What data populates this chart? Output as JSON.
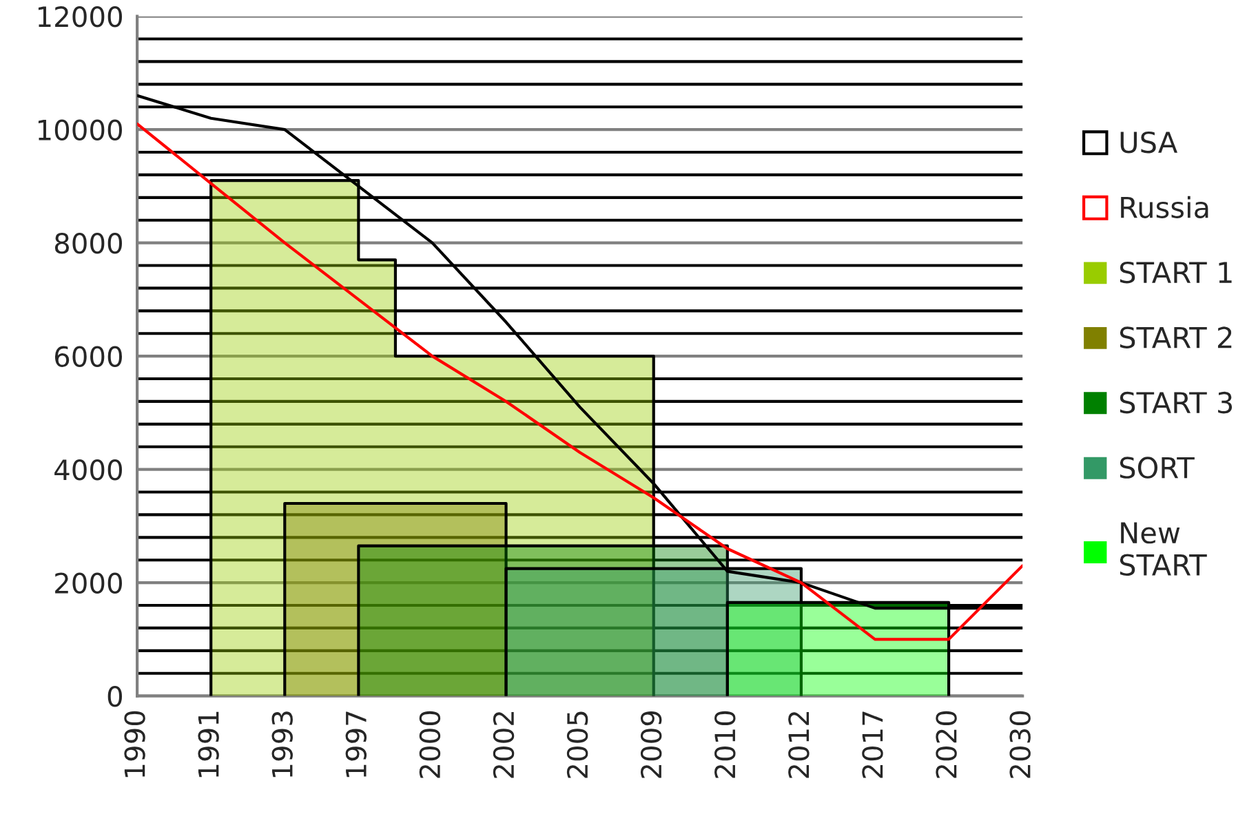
{
  "chart_data": {
    "type": "area",
    "categories": [
      "1990",
      null,
      "1991",
      null,
      "1993",
      null,
      "1997",
      null,
      "2000",
      null,
      "2002",
      null,
      "2005",
      null,
      "2009",
      null,
      "2010",
      null,
      "2012",
      null,
      "2017",
      null,
      "2020",
      null,
      "2030"
    ],
    "ylim": [
      0,
      12000
    ],
    "yticks": [
      0,
      {
        "value": 400,
        "label": null
      },
      {
        "value": 800,
        "label": null
      },
      {
        "value": 1200,
        "label": null
      },
      {
        "value": 1600,
        "label": null
      },
      2000,
      {
        "value": 2400,
        "label": null
      },
      {
        "value": 2800,
        "label": null
      },
      {
        "value": 3200,
        "label": null
      },
      {
        "value": 3600,
        "label": null
      },
      4000,
      {
        "value": 4400,
        "label": null
      },
      {
        "value": 4800,
        "label": null
      },
      {
        "value": 5200,
        "label": null
      },
      {
        "value": 5600,
        "label": null
      },
      6000,
      {
        "value": 6400,
        "label": null
      },
      {
        "value": 6800,
        "label": null
      },
      {
        "value": 7200,
        "label": null
      },
      {
        "value": 7600,
        "label": null
      },
      8000,
      {
        "value": 8400,
        "label": null
      },
      {
        "value": 8800,
        "label": null
      },
      {
        "value": 9200,
        "label": null
      },
      {
        "value": 9600,
        "label": null
      },
      10000,
      {
        "value": 10400,
        "label": null
      },
      {
        "value": 10800,
        "label": null
      },
      {
        "value": 11200,
        "label": null
      },
      {
        "value": 11600,
        "label": null
      },
      12000
    ],
    "grid": "y",
    "legend": "right",
    "series": [
      {
        "name": "USA",
        "type": "line",
        "color": "#000000",
        "values": [
          10600,
          null,
          10200,
          null,
          10000,
          null,
          9000,
          null,
          8000,
          null,
          6600,
          null,
          5100,
          null,
          3750,
          null,
          2200,
          null,
          2000,
          null,
          1550,
          null,
          1550,
          null,
          1550
        ]
      },
      {
        "name": "Russia",
        "type": "line",
        "color": "#ff0000",
        "values": [
          10100,
          null,
          9050,
          null,
          8000,
          null,
          7000,
          null,
          6000,
          null,
          5200,
          null,
          4300,
          null,
          3500,
          null,
          2600,
          null,
          2000,
          null,
          1000,
          null,
          1000,
          null,
          2300
        ]
      },
      {
        "name": "START 1",
        "color": "#99cc00",
        "values": [
          null,
          null,
          9100,
          9100,
          9100,
          9100,
          7700,
          6000,
          6000,
          6000,
          6000,
          6000,
          6000,
          6000,
          6000,
          null,
          null,
          null,
          null,
          null,
          null,
          null,
          null,
          null,
          null
        ]
      },
      {
        "name": "START 2",
        "color": "#808000",
        "values": [
          null,
          null,
          null,
          null,
          3400,
          3400,
          3400,
          3400,
          3400,
          3400,
          3400,
          null,
          null,
          null,
          null,
          null,
          null,
          null,
          null,
          null,
          null,
          null,
          null,
          null,
          null
        ]
      },
      {
        "name": "START 3",
        "color": "#008000",
        "values": [
          null,
          null,
          null,
          null,
          null,
          null,
          2650,
          2650,
          2650,
          2650,
          2650,
          2650,
          2650,
          2650,
          2650,
          2650,
          2650,
          null,
          null,
          null,
          null,
          null,
          null,
          null,
          null
        ]
      },
      {
        "name": "SORT",
        "color": "#339966",
        "values": [
          null,
          null,
          null,
          null,
          null,
          null,
          null,
          null,
          null,
          null,
          2250,
          2250,
          2250,
          2250,
          2250,
          2250,
          2250,
          2250,
          2250,
          null,
          null,
          null,
          null,
          null,
          null
        ]
      },
      {
        "name": "New START",
        "color": "#00ff00",
        "values": [
          null,
          null,
          null,
          null,
          null,
          null,
          null,
          null,
          null,
          null,
          null,
          null,
          null,
          null,
          null,
          null,
          1650,
          1650,
          1650,
          1650,
          1650,
          1650,
          1650,
          null,
          null
        ]
      }
    ]
  }
}
